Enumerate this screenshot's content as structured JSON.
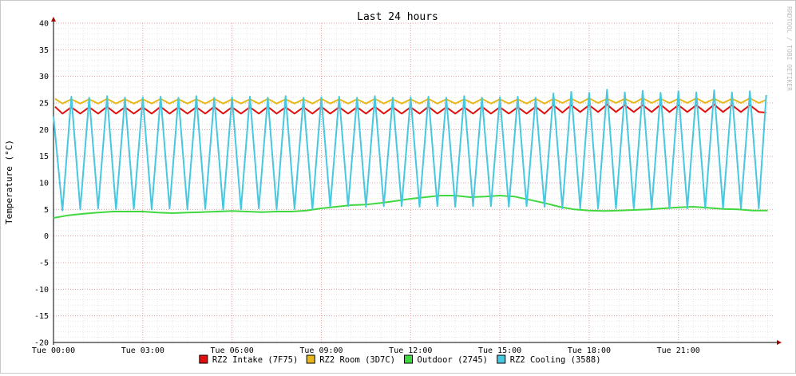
{
  "chart_data": {
    "type": "line",
    "title": "Last 24 hours",
    "ylabel": "Temperature (°C)",
    "xlabel": "",
    "watermark": "RRDTOOL / TOBI OETIKER",
    "ylim": [
      -20,
      40
    ],
    "y_ticks": [
      -20,
      -15,
      -10,
      -5,
      0,
      5,
      10,
      15,
      20,
      25,
      30,
      35,
      40
    ],
    "y_minor_step": 1,
    "xlim_hours": [
      0,
      24.2
    ],
    "x_ticks": [
      {
        "h": 0,
        "label": "Tue 00:00"
      },
      {
        "h": 3,
        "label": "Tue 03:00"
      },
      {
        "h": 6,
        "label": "Tue 06:00"
      },
      {
        "h": 9,
        "label": "Tue 09:00"
      },
      {
        "h": 12,
        "label": "Tue 12:00"
      },
      {
        "h": 15,
        "label": "Tue 15:00"
      },
      {
        "h": 18,
        "label": "Tue 18:00"
      },
      {
        "h": 21,
        "label": "Tue 21:00"
      }
    ],
    "x_minor_step_hours": 0.5,
    "grid": true,
    "legend_position": "bottom",
    "series": [
      {
        "name": "RZ2 Intake (7F75)",
        "color": "#e01010",
        "x": [
          0.05,
          0.3,
          0.6,
          0.9,
          1.2,
          1.5,
          1.8,
          2.1,
          2.4,
          2.7,
          3.0,
          3.3,
          3.6,
          3.9,
          4.2,
          4.5,
          4.8,
          5.1,
          5.4,
          5.7,
          6.0,
          6.3,
          6.6,
          6.9,
          7.2,
          7.5,
          7.8,
          8.1,
          8.4,
          8.7,
          9.0,
          9.3,
          9.6,
          9.9,
          10.2,
          10.5,
          10.8,
          11.1,
          11.4,
          11.7,
          12.0,
          12.3,
          12.6,
          12.9,
          13.2,
          13.5,
          13.8,
          14.1,
          14.4,
          14.7,
          15.0,
          15.3,
          15.6,
          15.9,
          16.2,
          16.5,
          16.8,
          17.1,
          17.4,
          17.7,
          18.0,
          18.3,
          18.6,
          18.9,
          19.2,
          19.5,
          19.8,
          20.1,
          20.4,
          20.7,
          21.0,
          21.3,
          21.6,
          21.9,
          22.2,
          22.5,
          22.8,
          23.1,
          23.4,
          23.7,
          23.95
        ],
        "y": [
          24.3,
          23.0,
          24.2,
          23.0,
          24.2,
          23.0,
          24.3,
          23.0,
          24.2,
          23.0,
          24.2,
          23.0,
          24.3,
          23.0,
          24.2,
          23.0,
          24.2,
          23.0,
          24.3,
          23.0,
          24.2,
          23.0,
          24.2,
          23.0,
          24.3,
          23.0,
          24.2,
          23.0,
          24.2,
          23.0,
          24.3,
          23.0,
          24.2,
          23.0,
          24.2,
          23.0,
          24.3,
          23.0,
          24.2,
          23.0,
          24.2,
          23.0,
          24.3,
          23.0,
          24.2,
          23.0,
          24.2,
          23.0,
          24.3,
          23.0,
          24.2,
          23.0,
          24.2,
          23.0,
          24.3,
          23.0,
          24.6,
          23.2,
          24.6,
          23.3,
          24.6,
          23.3,
          24.7,
          23.3,
          24.6,
          23.3,
          24.6,
          23.3,
          24.7,
          23.3,
          24.6,
          23.3,
          24.6,
          23.3,
          24.7,
          23.3,
          24.6,
          23.3,
          24.6,
          23.3,
          23.2
        ]
      },
      {
        "name": "RZ2 Room (3D7C)",
        "color": "#e8b818",
        "x": [
          0.05,
          0.3,
          0.6,
          0.9,
          1.2,
          1.5,
          1.8,
          2.1,
          2.4,
          2.7,
          3.0,
          3.3,
          3.6,
          3.9,
          4.2,
          4.5,
          4.8,
          5.1,
          5.4,
          5.7,
          6.0,
          6.3,
          6.6,
          6.9,
          7.2,
          7.5,
          7.8,
          8.1,
          8.4,
          8.7,
          9.0,
          9.3,
          9.6,
          9.9,
          10.2,
          10.5,
          10.8,
          11.1,
          11.4,
          11.7,
          12.0,
          12.3,
          12.6,
          12.9,
          13.2,
          13.5,
          13.8,
          14.1,
          14.4,
          14.7,
          15.0,
          15.3,
          15.6,
          15.9,
          16.2,
          16.5,
          16.8,
          17.1,
          17.4,
          17.7,
          18.0,
          18.3,
          18.6,
          18.9,
          19.2,
          19.5,
          19.8,
          20.1,
          20.4,
          20.7,
          21.0,
          21.3,
          21.6,
          21.9,
          22.2,
          22.5,
          22.8,
          23.1,
          23.4,
          23.7,
          23.95
        ],
        "y": [
          25.8,
          24.9,
          25.7,
          24.9,
          25.7,
          24.9,
          25.8,
          24.9,
          25.7,
          24.9,
          25.7,
          24.9,
          25.8,
          24.9,
          25.7,
          24.9,
          25.7,
          24.9,
          25.8,
          24.9,
          25.7,
          24.9,
          25.7,
          24.9,
          25.8,
          24.9,
          25.7,
          24.9,
          25.7,
          24.9,
          25.8,
          24.9,
          25.7,
          24.9,
          25.7,
          24.9,
          25.8,
          24.9,
          25.7,
          24.9,
          25.7,
          24.9,
          25.8,
          24.9,
          25.7,
          24.9,
          25.7,
          24.9,
          25.8,
          24.9,
          25.7,
          24.9,
          25.7,
          24.9,
          25.8,
          24.9,
          25.8,
          25.0,
          25.8,
          25.0,
          25.9,
          25.0,
          25.8,
          25.0,
          25.8,
          25.0,
          25.9,
          25.0,
          25.8,
          25.0,
          25.8,
          25.0,
          25.9,
          25.0,
          25.8,
          25.0,
          25.8,
          25.0,
          25.9,
          25.0,
          25.6
        ]
      },
      {
        "name": "Outdoor (2745)",
        "color": "#40d840",
        "x": [
          0.0,
          0.5,
          1.0,
          1.5,
          2.0,
          2.5,
          3.0,
          3.5,
          4.0,
          4.5,
          5.0,
          5.5,
          6.0,
          6.5,
          7.0,
          7.5,
          8.0,
          8.5,
          9.0,
          9.5,
          10.0,
          10.5,
          11.0,
          11.5,
          12.0,
          12.5,
          13.0,
          13.5,
          14.0,
          14.5,
          15.0,
          15.5,
          16.0,
          16.5,
          17.0,
          17.5,
          18.0,
          18.5,
          19.0,
          19.5,
          20.0,
          20.5,
          21.0,
          21.5,
          22.0,
          22.5,
          23.0,
          23.5,
          24.0
        ],
        "y": [
          3.4,
          3.9,
          4.2,
          4.4,
          4.6,
          4.6,
          4.6,
          4.4,
          4.3,
          4.4,
          4.5,
          4.6,
          4.7,
          4.6,
          4.5,
          4.6,
          4.6,
          4.8,
          5.2,
          5.5,
          5.8,
          5.9,
          6.2,
          6.6,
          7.0,
          7.3,
          7.6,
          7.6,
          7.3,
          7.4,
          7.6,
          7.4,
          6.8,
          6.2,
          5.5,
          5.0,
          4.8,
          4.7,
          4.8,
          4.9,
          5.0,
          5.2,
          5.4,
          5.5,
          5.3,
          5.1,
          5.0,
          4.8,
          4.8
        ]
      },
      {
        "name": "RZ2 Cooling (3588)",
        "color": "#48c8e0",
        "x": [
          0.0,
          0.3,
          0.6,
          0.9,
          1.2,
          1.5,
          1.8,
          2.1,
          2.4,
          2.7,
          3.0,
          3.3,
          3.6,
          3.9,
          4.2,
          4.5,
          4.8,
          5.1,
          5.4,
          5.7,
          6.0,
          6.3,
          6.6,
          6.9,
          7.2,
          7.5,
          7.8,
          8.1,
          8.4,
          8.7,
          9.0,
          9.3,
          9.6,
          9.9,
          10.2,
          10.5,
          10.8,
          11.1,
          11.4,
          11.7,
          12.0,
          12.3,
          12.6,
          12.9,
          13.2,
          13.5,
          13.8,
          14.1,
          14.4,
          14.7,
          15.0,
          15.3,
          15.6,
          15.9,
          16.2,
          16.5,
          16.8,
          17.1,
          17.4,
          17.7,
          18.0,
          18.3,
          18.6,
          18.9,
          19.2,
          19.5,
          19.8,
          20.1,
          20.4,
          20.7,
          21.0,
          21.3,
          21.6,
          21.9,
          22.2,
          22.5,
          22.8,
          23.1,
          23.4,
          23.7,
          23.95
        ],
        "y": [
          22.5,
          4.8,
          26.2,
          5.0,
          26.0,
          5.2,
          26.3,
          5.0,
          26.0,
          5.1,
          26.1,
          5.0,
          26.2,
          5.2,
          26.0,
          5.0,
          26.3,
          5.1,
          26.0,
          5.0,
          26.1,
          5.0,
          26.2,
          5.2,
          26.0,
          5.0,
          26.3,
          5.1,
          26.0,
          5.0,
          26.1,
          5.5,
          26.2,
          5.6,
          26.0,
          5.5,
          26.3,
          5.6,
          26.0,
          5.6,
          26.1,
          5.5,
          26.2,
          5.6,
          26.0,
          5.5,
          26.3,
          5.6,
          26.0,
          5.6,
          26.1,
          5.5,
          26.2,
          5.6,
          26.0,
          5.5,
          26.8,
          5.2,
          27.1,
          5.2,
          26.9,
          5.2,
          27.5,
          5.2,
          27.0,
          5.2,
          27.3,
          5.2,
          26.9,
          5.2,
          27.2,
          5.2,
          27.0,
          5.2,
          27.4,
          5.2,
          27.0,
          5.2,
          27.2,
          5.2,
          26.5
        ]
      }
    ]
  }
}
